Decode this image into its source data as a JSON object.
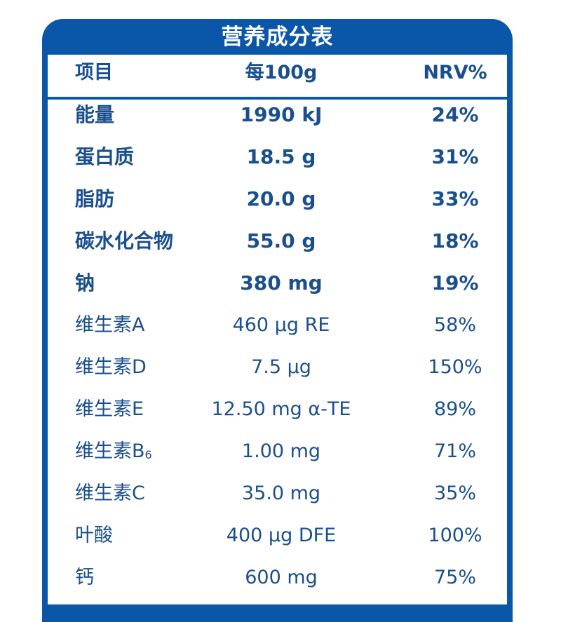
{
  "table": {
    "title": "营养成分表",
    "header": {
      "item": "项目",
      "per100g": "每100g",
      "nrv": "NRV%"
    },
    "rows": [
      {
        "item": "能量",
        "per100g": "1990 kJ",
        "nrv": "24%"
      },
      {
        "item": "蛋白质",
        "per100g": "18.5 g",
        "nrv": "31%"
      },
      {
        "item": "脂肪",
        "per100g": "20.0 g",
        "nrv": "33%"
      },
      {
        "item": "碳水化合物",
        "per100g": "55.0 g",
        "nrv": "18%"
      },
      {
        "item": "钠",
        "per100g": "380 mg",
        "nrv": "19%"
      },
      {
        "item": "维生素A",
        "per100g": "460 μg RE",
        "nrv": "58%"
      },
      {
        "item": "维生素D",
        "per100g": "7.5 μg",
        "nrv": "150%"
      },
      {
        "item": "维生素E",
        "per100g": "12.50 mg α-TE",
        "nrv": "89%"
      },
      {
        "item": "维生素B",
        "item_sub": "6",
        "per100g": "1.00 mg",
        "nrv": "71%"
      },
      {
        "item": "维生素C",
        "per100g": "35.0 mg",
        "nrv": "35%"
      },
      {
        "item": "叶酸",
        "per100g": "400 μg DFE",
        "nrv": "100%"
      },
      {
        "item": "钙",
        "per100g": "600 mg",
        "nrv": "75%"
      }
    ]
  },
  "colors": {
    "frame_blue": "#0a56a8",
    "text_blue": "#1a4f8e",
    "background": "#ffffff"
  }
}
